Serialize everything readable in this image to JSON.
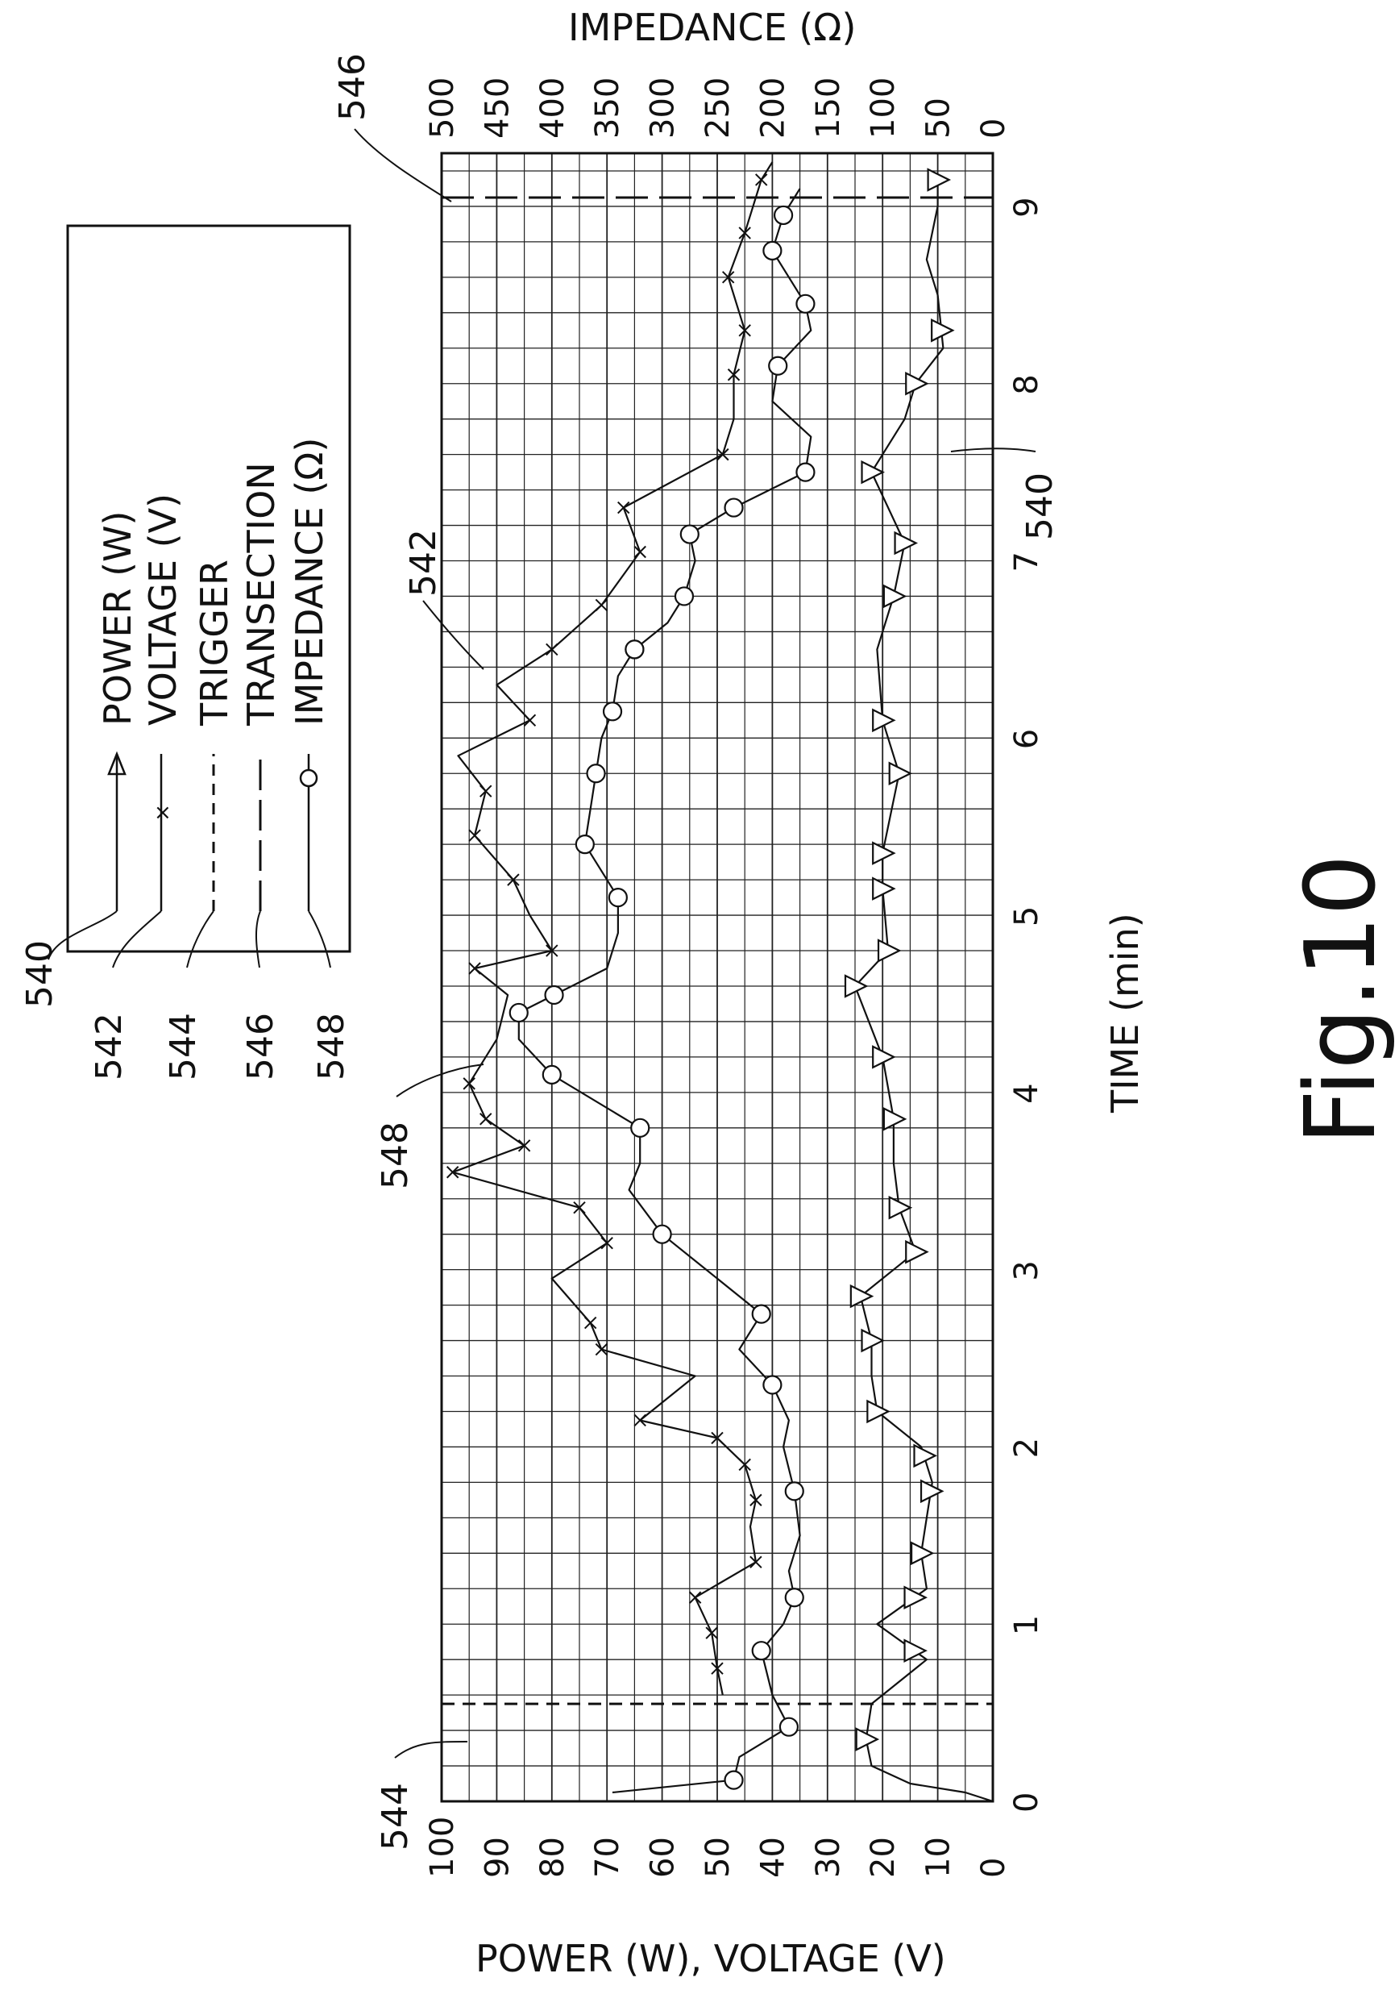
{
  "figure_label": "Fig.10",
  "chart_data": {
    "type": "line",
    "title": "",
    "xlabel": "TIME (min)",
    "ylabel_left": "POWER (W), VOLTAGE (V)",
    "ylabel_right": "IMPEDANCE (Ω)",
    "xlim": [
      0,
      9.3
    ],
    "ylim_left": [
      0,
      100
    ],
    "ylim_right": [
      0,
      500
    ],
    "x_ticks": [
      "0",
      "1",
      "2",
      "3",
      "4",
      "5",
      "6",
      "7",
      "8",
      "9"
    ],
    "y_left_ticks": [
      "0",
      "10",
      "20",
      "30",
      "40",
      "50",
      "60",
      "70",
      "80",
      "90",
      "100"
    ],
    "y_right_ticks": [
      "0",
      "50",
      "100",
      "150",
      "200",
      "250",
      "300",
      "350",
      "400",
      "450",
      "500"
    ],
    "grid": true,
    "legend_position": "top-left",
    "legend": [
      {
        "name": "POWER (W)",
        "ref": "540",
        "marker": "triangle",
        "style": "solid"
      },
      {
        "name": "VOLTAGE (V)",
        "ref": "542",
        "marker": "x",
        "style": "solid"
      },
      {
        "name": "TRIGGER",
        "ref": "544",
        "marker": "none",
        "style": "short-dash"
      },
      {
        "name": "TRANSECTION",
        "ref": "546",
        "marker": "none",
        "style": "long-dash"
      },
      {
        "name": "IMPEDANCE (Ω)",
        "ref": "548",
        "marker": "circle",
        "style": "solid"
      }
    ],
    "trigger_x": 0.55,
    "transection_x": 9.05,
    "series": [
      {
        "name": "POWER (W)",
        "ref": "540",
        "axis": "left",
        "marker": "triangle",
        "x": [
          0.0,
          0.05,
          0.1,
          0.2,
          0.35,
          0.55,
          0.8,
          1.0,
          1.2,
          1.4,
          1.6,
          1.8,
          2.0,
          2.2,
          2.4,
          2.6,
          2.85,
          3.1,
          3.35,
          3.6,
          3.85,
          4.2,
          4.6,
          4.8,
          5.15,
          5.35,
          5.8,
          6.1,
          6.5,
          6.8,
          7.1,
          7.5,
          7.8,
          8.0,
          8.2,
          8.5,
          8.7,
          9.0,
          9.15
        ],
        "y": [
          0,
          5,
          15,
          22,
          23,
          22,
          12,
          21,
          12,
          13,
          12,
          11,
          13,
          21,
          22,
          22,
          24,
          14,
          17,
          18,
          18,
          20,
          25,
          19,
          20,
          20,
          17,
          20,
          21,
          18,
          16,
          22,
          16,
          14,
          9,
          10,
          12,
          10,
          10
        ],
        "marker_x": [
          0.35,
          0.85,
          1.15,
          1.4,
          1.75,
          1.95,
          2.2,
          2.6,
          2.85,
          3.1,
          3.35,
          3.85,
          4.2,
          4.6,
          4.8,
          5.15,
          5.35,
          5.8,
          6.1,
          6.8,
          7.1,
          7.5,
          8.0,
          8.3,
          9.15
        ]
      },
      {
        "name": "VOLTAGE (V)",
        "ref": "542",
        "axis": "left",
        "marker": "x",
        "x": [
          0.6,
          0.75,
          0.95,
          1.15,
          1.35,
          1.55,
          1.7,
          1.9,
          2.05,
          2.15,
          2.4,
          2.55,
          2.7,
          2.95,
          3.15,
          3.35,
          3.55,
          3.7,
          3.85,
          4.05,
          4.3,
          4.55,
          4.7,
          4.8,
          5.0,
          5.2,
          5.45,
          5.7,
          5.9,
          6.1,
          6.3,
          6.5,
          6.75,
          7.05,
          7.3,
          7.6,
          7.8,
          8.05,
          8.3,
          8.6,
          8.85,
          9.15,
          9.25
        ],
        "y": [
          49,
          50,
          51,
          54,
          43,
          44,
          43,
          45,
          50,
          64,
          54,
          71,
          73,
          80,
          70,
          75,
          98,
          85,
          92,
          95,
          90,
          88,
          94,
          80,
          84,
          87,
          94,
          92,
          97,
          84,
          90,
          80,
          71,
          64,
          67,
          49,
          47,
          47,
          45,
          48,
          45,
          42,
          40
        ],
        "marker_x": [
          0.75,
          0.95,
          1.15,
          1.35,
          1.7,
          1.9,
          2.05,
          2.15,
          2.55,
          2.7,
          3.15,
          3.35,
          3.55,
          3.7,
          3.85,
          4.05,
          4.7,
          4.8,
          5.2,
          5.45,
          5.7,
          6.1,
          6.5,
          6.75,
          7.05,
          7.3,
          7.6,
          8.05,
          8.3,
          8.6,
          8.85,
          9.15
        ]
      },
      {
        "name": "IMPEDANCE (Ω)",
        "ref": "548",
        "axis": "right",
        "marker": "circle",
        "x": [
          0.05,
          0.12,
          0.25,
          0.42,
          0.6,
          0.85,
          1.0,
          1.15,
          1.3,
          1.5,
          1.75,
          2.0,
          2.15,
          2.35,
          2.55,
          2.75,
          3.0,
          3.2,
          3.45,
          3.6,
          3.8,
          4.1,
          4.3,
          4.45,
          4.7,
          4.9,
          5.1,
          5.4,
          5.6,
          5.8,
          6.0,
          6.15,
          6.35,
          6.5,
          6.65,
          6.8,
          7.0,
          7.15,
          7.3,
          7.5,
          7.7,
          7.9,
          8.1,
          8.3,
          8.45,
          8.75,
          8.95,
          9.1
        ],
        "y": [
          345,
          235,
          230,
          185,
          200,
          210,
          190,
          180,
          185,
          175,
          180,
          190,
          185,
          200,
          230,
          210,
          260,
          300,
          330,
          320,
          320,
          400,
          430,
          430,
          350,
          340,
          340,
          370,
          365,
          360,
          355,
          345,
          340,
          325,
          295,
          280,
          270,
          275,
          235,
          170,
          165,
          200,
          195,
          165,
          170,
          200,
          190,
          175
        ],
        "marker_x": [
          0.12,
          0.42,
          0.85,
          1.15,
          1.75,
          2.35,
          2.75,
          3.2,
          3.8,
          4.1,
          4.45,
          4.55,
          5.1,
          5.4,
          5.8,
          6.15,
          6.5,
          6.5,
          6.8,
          7.15,
          7.3,
          7.5,
          8.1,
          8.45,
          8.75,
          8.95
        ]
      }
    ]
  },
  "annotations": {
    "ref_540_legend": "540",
    "ref_542_legend": "542",
    "ref_544_legend": "544",
    "ref_546_legend": "546",
    "ref_548_legend": "548",
    "ref_546_top": "546",
    "ref_542_plot": "542",
    "ref_540_plot": "540",
    "ref_548_plot": "548",
    "ref_544_plot": "544"
  }
}
